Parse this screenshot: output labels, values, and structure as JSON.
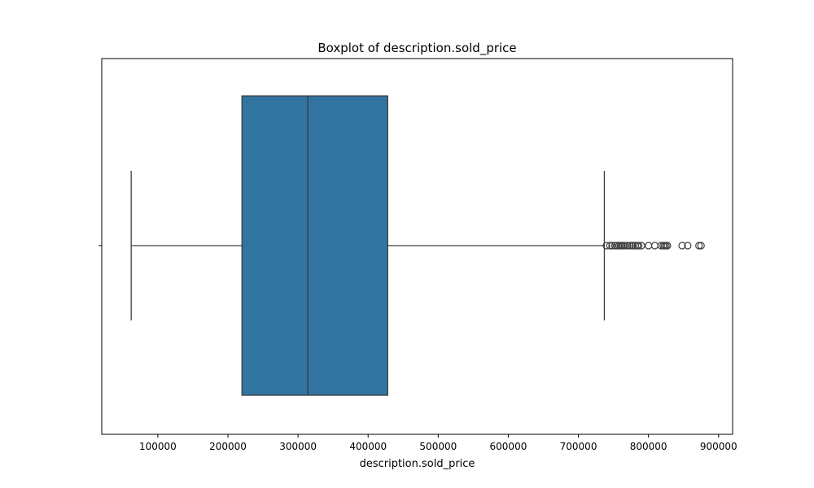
{
  "chart_data": {
    "type": "box",
    "title": "Boxplot of description.sold_price",
    "xlabel": "description.sold_price",
    "ylabel": "",
    "xlim": [
      20000,
      920000
    ],
    "x_ticks": [
      100000,
      200000,
      300000,
      400000,
      500000,
      600000,
      700000,
      800000,
      900000
    ],
    "x_tick_labels": [
      "100000",
      "200000",
      "300000",
      "400000",
      "500000",
      "600000",
      "700000",
      "800000",
      "900000"
    ],
    "grid": false,
    "box": {
      "whisker_low": 62000,
      "q1": 220000,
      "median": 314000,
      "q3": 428000,
      "whisker_high": 737000,
      "color": "#3274a1",
      "line_color": "#3f3f3f"
    },
    "outliers": [
      740000,
      745000,
      748000,
      752000,
      755000,
      758000,
      760000,
      762000,
      764000,
      766000,
      770000,
      773000,
      776000,
      778000,
      781000,
      784000,
      786000,
      790000,
      800000,
      809000,
      818000,
      821000,
      823000,
      825000,
      827000,
      848000,
      856000,
      872000,
      875000
    ]
  }
}
